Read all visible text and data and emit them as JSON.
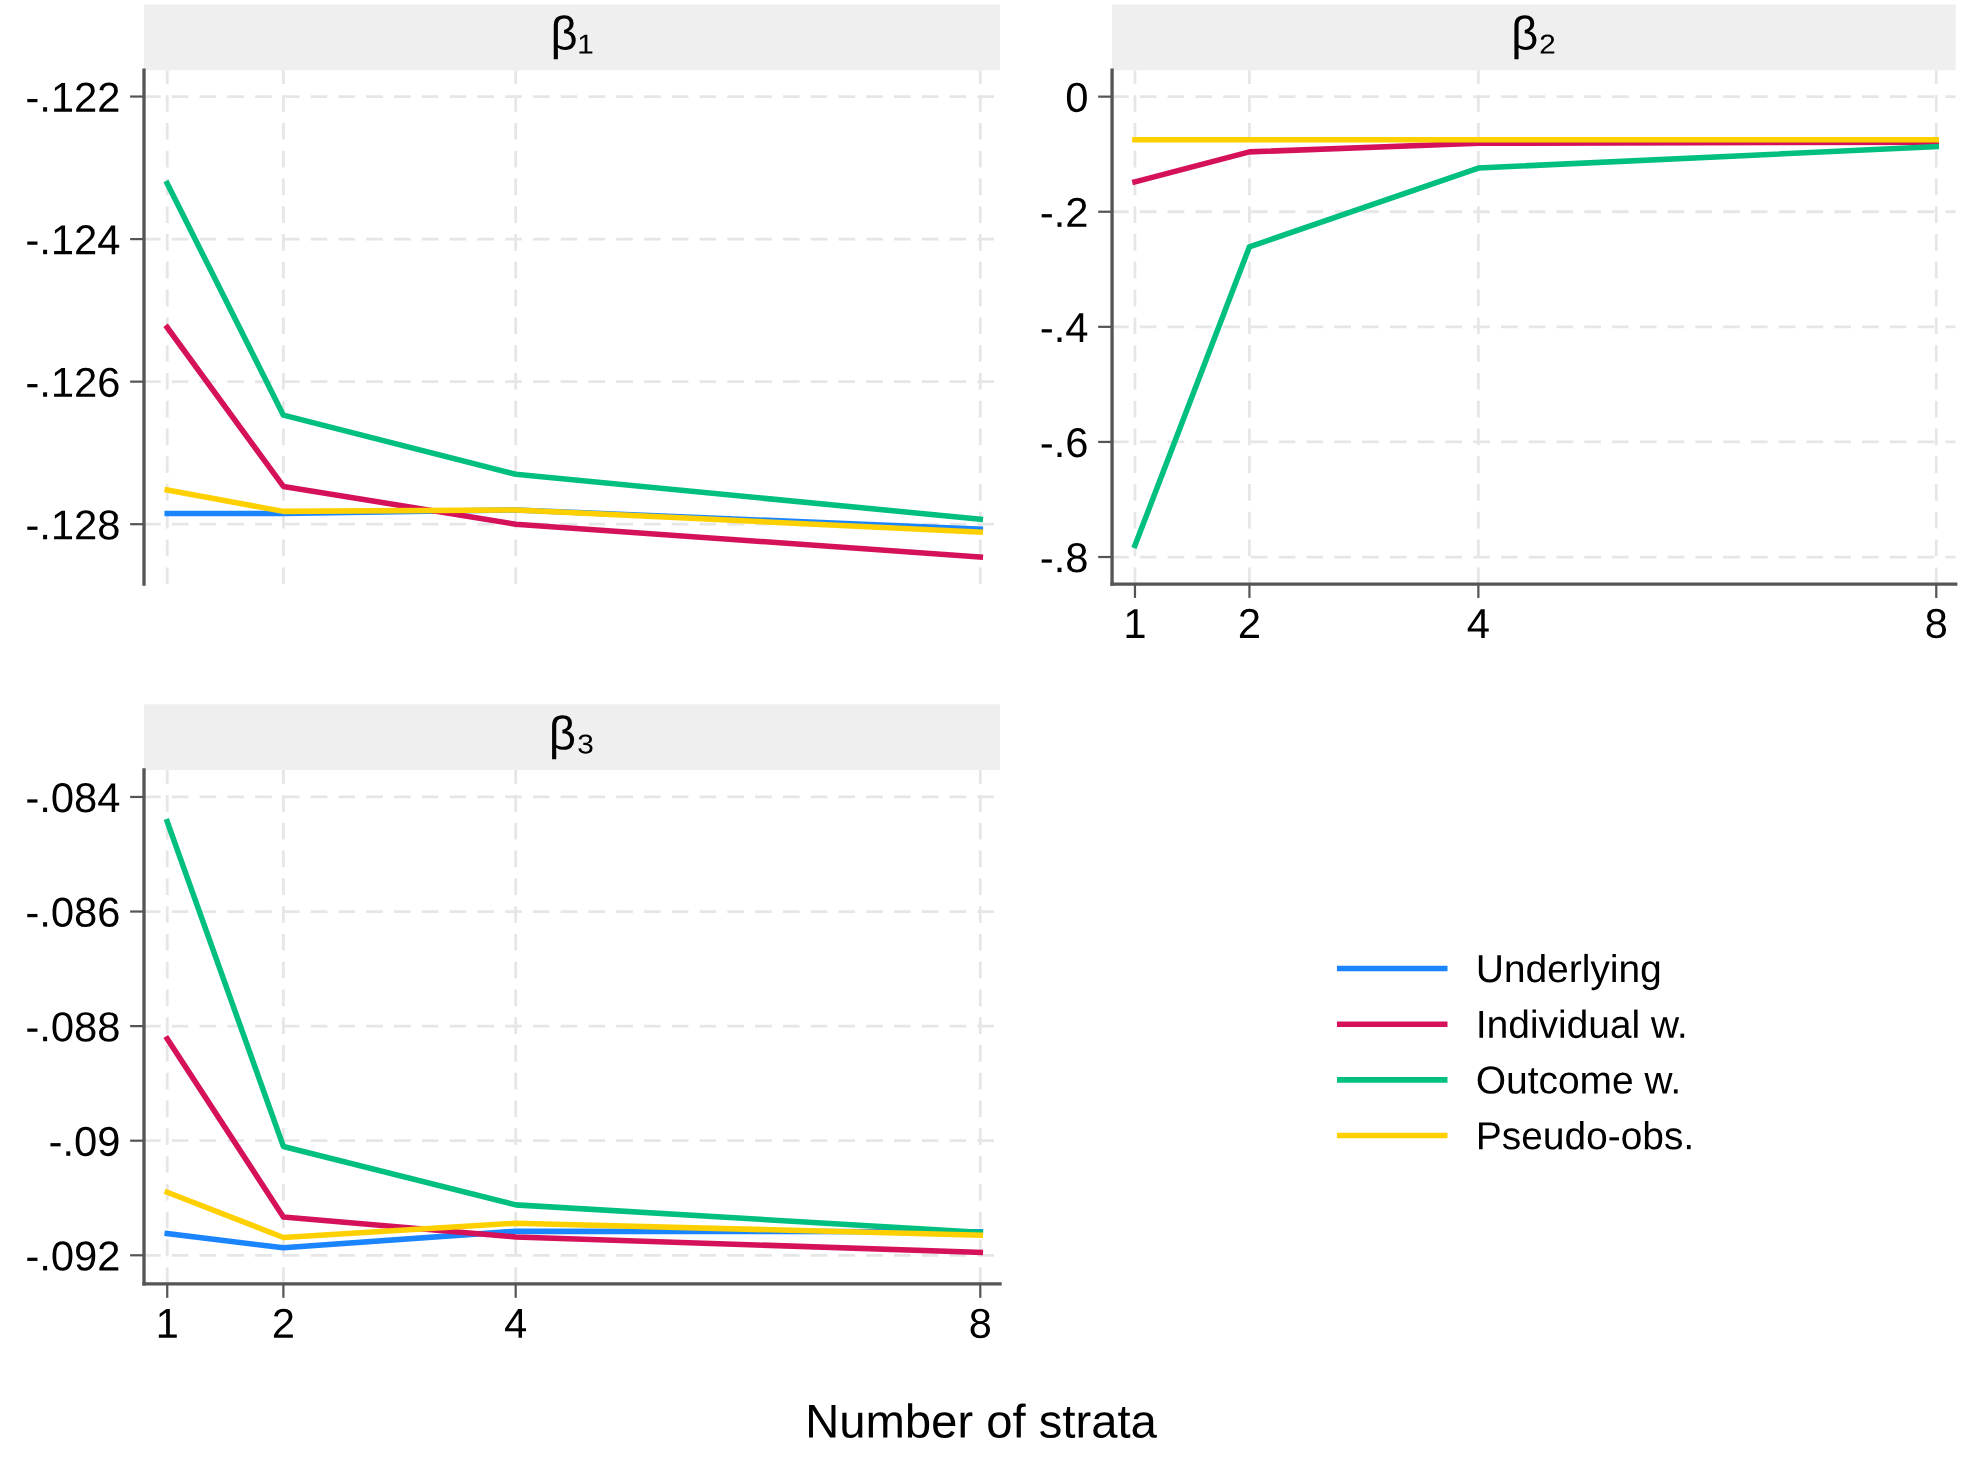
{
  "chart_data": [
    {
      "type": "line",
      "title": "β₁",
      "x": [
        1,
        2,
        4,
        8
      ],
      "xlim": [
        0.8,
        8.17
      ],
      "xticks": [
        1,
        2,
        4,
        8
      ],
      "ylim": [
        -0.12884,
        -0.12163
      ],
      "yticks": [
        {
          "value": -0.128,
          "label": "-.128"
        },
        {
          "value": -0.126,
          "label": "-.126"
        },
        {
          "value": -0.124,
          "label": "-.124"
        },
        {
          "value": -0.122,
          "label": "-.122"
        }
      ],
      "tick_labels": "y",
      "grid": true,
      "line_style": "solid",
      "legend": "bottom right",
      "series": [
        {
          "name": "Underlying",
          "color": "#1a85ff",
          "values": [
            -0.12785,
            -0.12785,
            -0.1278,
            -0.12807
          ]
        },
        {
          "name": "Individual w.",
          "color": "#d41159",
          "values": [
            -0.12524,
            -0.12747,
            -0.128,
            -0.12846
          ]
        },
        {
          "name": "Outcome w.",
          "color": "#00bf7f",
          "values": [
            -0.12322,
            -0.12647,
            -0.1273,
            -0.12793
          ]
        },
        {
          "name": "Pseudo-obs.",
          "color": "#ffd000",
          "values": [
            -0.12752,
            -0.12782,
            -0.1278,
            -0.12811
          ]
        }
      ]
    },
    {
      "type": "line",
      "title": "β₂",
      "x": [
        1,
        2,
        4,
        8
      ],
      "xlim": [
        0.8,
        8.17
      ],
      "xticks": [
        1,
        2,
        4,
        8
      ],
      "ylim": [
        -0.847,
        0.046
      ],
      "yticks": [
        {
          "value": -0.8,
          "label": "-.8"
        },
        {
          "value": -0.6,
          "label": "-.6"
        },
        {
          "value": -0.4,
          "label": "-.4"
        },
        {
          "value": -0.2,
          "label": "-.2"
        },
        0
      ],
      "grid": true,
      "line_style": "solid",
      "series": [
        {
          "color": "#d41159",
          "values": [
            -0.148,
            -0.096,
            -0.081,
            -0.079
          ]
        },
        {
          "color": "#00bf7f",
          "values": [
            -0.78,
            -0.261,
            -0.124,
            -0.087
          ]
        },
        {
          "color": "#ffd000",
          "values": [
            -0.075,
            -0.075,
            -0.075,
            -0.075
          ]
        }
      ]
    },
    {
      "type": "line",
      "title": "β₃",
      "xlabel": "Number of strata",
      "x": [
        1,
        2,
        4,
        8
      ],
      "xlim": [
        0.8,
        8.17
      ],
      "xticks": [
        1,
        2,
        4,
        8
      ],
      "ylim": [
        -0.0925,
        -0.08353
      ],
      "yticks": [
        {
          "value": -0.092,
          "label": "-.092"
        },
        {
          "value": -0.09,
          "label": "-.09"
        },
        {
          "value": -0.088,
          "label": "-.088"
        },
        {
          "value": -0.086,
          "label": "-.086"
        },
        {
          "value": -0.084,
          "label": "-.084"
        }
      ],
      "grid": true,
      "line_style": "solid",
      "series": [
        {
          "color": "#1a85ff",
          "values": [
            -0.09162,
            -0.09187,
            -0.09158,
            -0.09159
          ]
        },
        {
          "color": "#d41159",
          "values": [
            -0.08822,
            -0.09133,
            -0.09168,
            -0.09195
          ]
        },
        {
          "color": "#00bf7f",
          "values": [
            -0.08443,
            -0.0901,
            -0.09112,
            -0.0916
          ]
        },
        {
          "color": "#ffd000",
          "values": [
            -0.0909,
            -0.09169,
            -0.09144,
            -0.09165
          ]
        }
      ]
    }
  ]
}
